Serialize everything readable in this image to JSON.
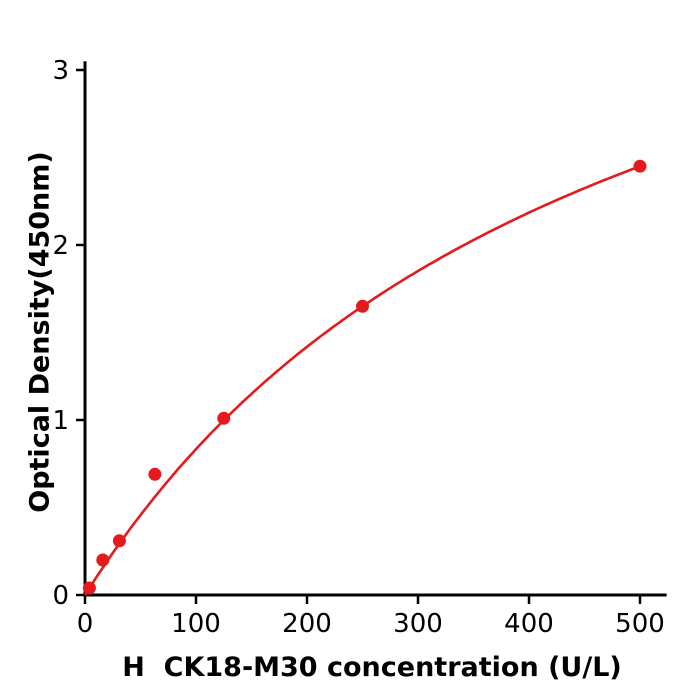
{
  "chart_data": {
    "type": "scatter",
    "title": "",
    "xlabel": "H  CK18-M30 concentration (U/L)",
    "ylabel": "Optical Density(450nm)",
    "xlim": [
      0,
      524
    ],
    "ylim": [
      0,
      3
    ],
    "x_ticks": [
      0,
      100,
      200,
      300,
      400,
      500
    ],
    "y_ticks": [
      0,
      1,
      2,
      3
    ],
    "grid": false,
    "legend": null,
    "colors": {
      "series": "#e41a1c",
      "axis": "#000000",
      "background": "#ffffff"
    },
    "series": [
      {
        "name": "standard-points",
        "type": "scatter",
        "color": "#e41a1c",
        "points": [
          [
            4,
            0.04
          ],
          [
            16,
            0.2
          ],
          [
            31,
            0.31
          ],
          [
            63,
            0.69
          ],
          [
            125,
            1.01
          ],
          [
            250,
            1.65
          ],
          [
            500,
            2.45
          ]
        ]
      },
      {
        "name": "fit-curve",
        "type": "line",
        "color": "#e41a1c",
        "fit": {
          "model": "y = a*x/(b+x)",
          "a": 4.755,
          "b": 470.5,
          "x_range": [
            0,
            500
          ]
        }
      }
    ]
  }
}
